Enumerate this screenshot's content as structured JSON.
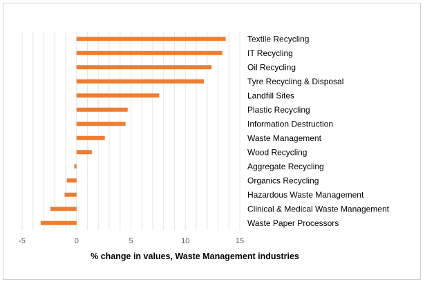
{
  "chart_data": {
    "type": "bar",
    "orientation": "horizontal",
    "categories": [
      "Textile Recycling",
      "IT Recycling",
      "Oil Recycling",
      "Tyre Recycling & Disposal",
      "Landfill Sites",
      "Plastic Recycling",
      "Information Destruction",
      "Waste Management",
      "Wood Recycling",
      "Aggregate Recycling",
      "Organics Recycling",
      "Hazardous Waste Management",
      "Clinical & Medical Waste Management",
      "Waste Paper Processors"
    ],
    "values": [
      13.7,
      13.4,
      12.4,
      11.7,
      7.6,
      4.7,
      4.5,
      2.6,
      1.4,
      -0.2,
      -0.9,
      -1.1,
      -2.4,
      -3.3
    ],
    "xlabel": "% change in values, Waste Management industries",
    "xlim": [
      -5,
      15
    ],
    "xticks": [
      -5,
      0,
      5,
      10,
      15
    ],
    "grid": true,
    "legend": "none",
    "bar_color": "#ED7D31",
    "grid_color": "#e6e6e6"
  }
}
